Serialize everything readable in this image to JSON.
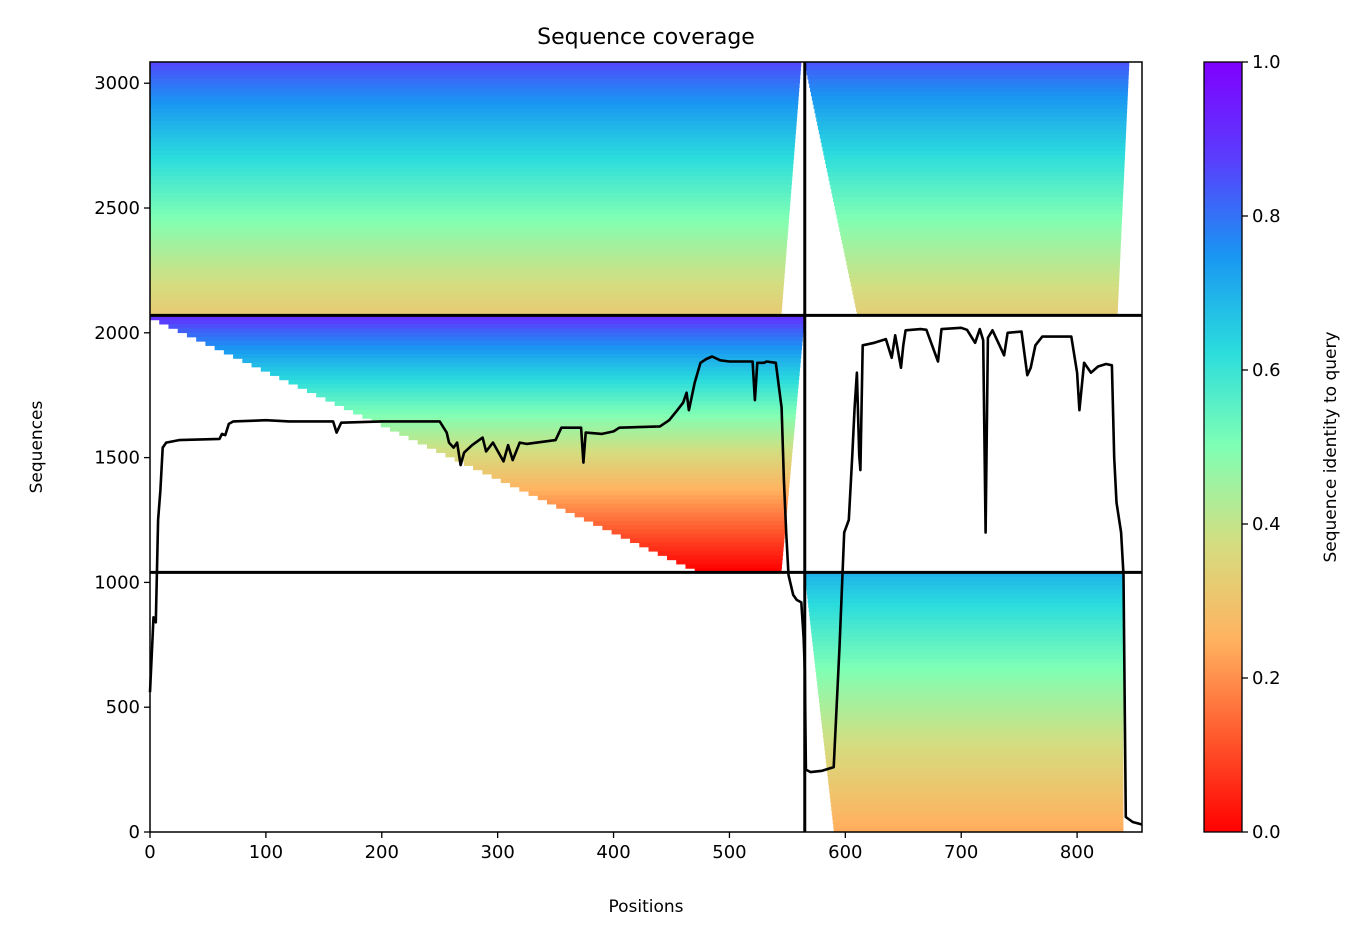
{
  "chart_data": {
    "type": "heatmap",
    "title": "Sequence coverage",
    "xlabel": "Positions",
    "ylabel": "Sequences",
    "colorbar_label": "Sequence identity to query",
    "xlim": [
      0,
      856
    ],
    "ylim": [
      0,
      3085
    ],
    "xticks": [
      0,
      100,
      200,
      300,
      400,
      500,
      600,
      700,
      800
    ],
    "yticks": [
      0,
      500,
      1000,
      1500,
      2000,
      2500,
      3000
    ],
    "colorbar_ticks": [
      "0.0",
      "0.2",
      "0.4",
      "0.6",
      "0.8",
      "1.0"
    ],
    "colormap": "rainbow_r",
    "colormap_stops": [
      {
        "v": 0.0,
        "color": "#ff0000"
      },
      {
        "v": 0.125,
        "color": "#ff5a2e"
      },
      {
        "v": 0.25,
        "color": "#ffb360"
      },
      {
        "v": 0.375,
        "color": "#d4dd80"
      },
      {
        "v": 0.5,
        "color": "#80ffb4"
      },
      {
        "v": 0.625,
        "color": "#2adcdd"
      },
      {
        "v": 0.75,
        "color": "#1995f2"
      },
      {
        "v": 0.875,
        "color": "#5a3dfd"
      },
      {
        "v": 1.0,
        "color": "#8000ff"
      }
    ],
    "chain_boundaries": {
      "positions": [
        565
      ],
      "sequences": [
        1040,
        2070
      ]
    },
    "blocks": [
      {
        "x": [
          0,
          565
        ],
        "y": [
          2070,
          3085
        ],
        "id_top": 0.86,
        "id_bottom": 0.32,
        "fill_top": [
          0,
          562
        ],
        "fill_bottom": [
          0,
          545
        ]
      },
      {
        "x": [
          565,
          856
        ],
        "y": [
          2070,
          3085
        ],
        "id_top": 0.84,
        "id_bottom": 0.33,
        "fill_top": [
          565,
          845
        ],
        "fill_bottom": [
          610,
          835
        ]
      },
      {
        "x": [
          0,
          565
        ],
        "y": [
          1040,
          2070
        ],
        "id_top": 0.9,
        "id_bottom": 0.0,
        "fill_top": [
          0,
          565
        ],
        "fill_bottom": [
          470,
          545
        ]
      },
      {
        "x": [
          565,
          856
        ],
        "y": [
          0,
          1040
        ],
        "id_top": 0.7,
        "id_bottom": 0.24,
        "fill_top": [
          565,
          840
        ],
        "fill_bottom": [
          590,
          840
        ]
      }
    ],
    "coverage_line": [
      [
        0,
        560
      ],
      [
        3,
        860
      ],
      [
        5,
        840
      ],
      [
        7,
        1250
      ],
      [
        9,
        1370
      ],
      [
        11,
        1540
      ],
      [
        14,
        1560
      ],
      [
        25,
        1570
      ],
      [
        60,
        1575
      ],
      [
        62,
        1595
      ],
      [
        65,
        1590
      ],
      [
        68,
        1635
      ],
      [
        72,
        1645
      ],
      [
        90,
        1648
      ],
      [
        100,
        1650
      ],
      [
        120,
        1645
      ],
      [
        158,
        1645
      ],
      [
        161,
        1600
      ],
      [
        165,
        1640
      ],
      [
        200,
        1645
      ],
      [
        250,
        1645
      ],
      [
        256,
        1600
      ],
      [
        258,
        1560
      ],
      [
        262,
        1540
      ],
      [
        265,
        1560
      ],
      [
        268,
        1470
      ],
      [
        271,
        1520
      ],
      [
        278,
        1550
      ],
      [
        287,
        1580
      ],
      [
        290,
        1525
      ],
      [
        296,
        1560
      ],
      [
        305,
        1485
      ],
      [
        309,
        1550
      ],
      [
        313,
        1490
      ],
      [
        319,
        1560
      ],
      [
        325,
        1555
      ],
      [
        350,
        1570
      ],
      [
        355,
        1620
      ],
      [
        372,
        1620
      ],
      [
        374,
        1480
      ],
      [
        376,
        1600
      ],
      [
        390,
        1595
      ],
      [
        400,
        1605
      ],
      [
        405,
        1620
      ],
      [
        440,
        1625
      ],
      [
        448,
        1650
      ],
      [
        455,
        1690
      ],
      [
        460,
        1720
      ],
      [
        463,
        1760
      ],
      [
        465,
        1690
      ],
      [
        470,
        1800
      ],
      [
        475,
        1880
      ],
      [
        480,
        1895
      ],
      [
        485,
        1905
      ],
      [
        492,
        1890
      ],
      [
        500,
        1885
      ],
      [
        520,
        1885
      ],
      [
        522,
        1730
      ],
      [
        524,
        1880
      ],
      [
        530,
        1880
      ],
      [
        532,
        1885
      ],
      [
        540,
        1880
      ],
      [
        545,
        1700
      ],
      [
        547,
        1410
      ],
      [
        549,
        1200
      ],
      [
        551,
        1030
      ],
      [
        555,
        950
      ],
      [
        558,
        930
      ],
      [
        562,
        920
      ],
      [
        564,
        780
      ],
      [
        565,
        650
      ],
      [
        566,
        250
      ],
      [
        570,
        240
      ],
      [
        580,
        245
      ],
      [
        590,
        260
      ],
      [
        595,
        740
      ],
      [
        599,
        1200
      ],
      [
        603,
        1250
      ],
      [
        606,
        1510
      ],
      [
        608,
        1700
      ],
      [
        610,
        1840
      ],
      [
        612,
        1510
      ],
      [
        613,
        1450
      ],
      [
        615,
        1950
      ],
      [
        625,
        1960
      ],
      [
        635,
        1975
      ],
      [
        640,
        1900
      ],
      [
        643,
        1990
      ],
      [
        648,
        1860
      ],
      [
        650,
        1950
      ],
      [
        652,
        2010
      ],
      [
        665,
        2015
      ],
      [
        670,
        2012
      ],
      [
        680,
        1885
      ],
      [
        683,
        2015
      ],
      [
        700,
        2020
      ],
      [
        705,
        2012
      ],
      [
        712,
        1960
      ],
      [
        716,
        2015
      ],
      [
        719,
        1970
      ],
      [
        721,
        1200
      ],
      [
        723,
        1980
      ],
      [
        727,
        2010
      ],
      [
        733,
        1950
      ],
      [
        737,
        1910
      ],
      [
        740,
        2000
      ],
      [
        752,
        2005
      ],
      [
        757,
        1830
      ],
      [
        760,
        1860
      ],
      [
        764,
        1950
      ],
      [
        770,
        1985
      ],
      [
        795,
        1985
      ],
      [
        800,
        1840
      ],
      [
        802,
        1690
      ],
      [
        806,
        1880
      ],
      [
        812,
        1840
      ],
      [
        818,
        1865
      ],
      [
        825,
        1875
      ],
      [
        830,
        1870
      ],
      [
        832,
        1500
      ],
      [
        834,
        1320
      ],
      [
        838,
        1200
      ],
      [
        840,
        1030
      ],
      [
        842,
        60
      ],
      [
        848,
        40
      ],
      [
        856,
        30
      ]
    ]
  }
}
